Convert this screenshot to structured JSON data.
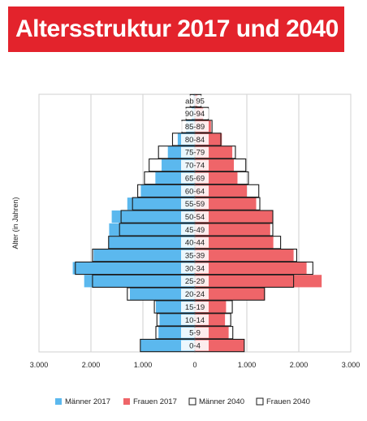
{
  "chart_data": {
    "type": "bar",
    "title": "Altersstruktur 2017 und 2040",
    "ylabel": "Alter (in Jahren)",
    "xlim": [
      -3000,
      3000
    ],
    "x_ticks": [
      -3000,
      -2000,
      -1000,
      0,
      1000,
      2000,
      3000
    ],
    "x_tick_labels": [
      "3.000",
      "2.000",
      "1.000",
      "0",
      "1.000",
      "2.000",
      "3.000"
    ],
    "categories": [
      "ab 95",
      "90-94",
      "85-89",
      "80-84",
      "75-79",
      "70-74",
      "65-69",
      "60-64",
      "55-59",
      "50-54",
      "45-49",
      "40-44",
      "35-39",
      "30-34",
      "25-29",
      "20-24",
      "15-19",
      "10-14",
      "5-9",
      "0-4"
    ],
    "grid": true,
    "legend_position": "bottom",
    "series": [
      {
        "name": "Männer 2017",
        "style": "filled",
        "side": "left",
        "color": "#5bb8ee",
        "values": [
          30,
          60,
          170,
          330,
          520,
          640,
          760,
          1040,
          1300,
          1600,
          1650,
          1660,
          1950,
          2350,
          2130,
          1250,
          750,
          680,
          700,
          1050
        ]
      },
      {
        "name": "Frauen 2017",
        "style": "filled",
        "side": "right",
        "color": "#ef6569",
        "values": [
          50,
          160,
          310,
          520,
          720,
          750,
          820,
          1000,
          1180,
          1500,
          1450,
          1510,
          1900,
          2150,
          2440,
          1350,
          600,
          580,
          650,
          950
        ]
      },
      {
        "name": "Männer 2040",
        "style": "outline",
        "side": "left",
        "color": "#1a1a1a",
        "values": [
          90,
          170,
          250,
          430,
          700,
          880,
          970,
          1100,
          1200,
          1420,
          1450,
          1660,
          1970,
          2300,
          1970,
          1300,
          780,
          730,
          750,
          1050
        ]
      },
      {
        "name": "Frauen 2040",
        "style": "outline",
        "side": "right",
        "color": "#1a1a1a",
        "values": [
          120,
          260,
          330,
          500,
          780,
          980,
          1030,
          1230,
          1250,
          1500,
          1500,
          1650,
          1960,
          2270,
          1900,
          1340,
          720,
          690,
          730,
          950
        ]
      }
    ]
  }
}
